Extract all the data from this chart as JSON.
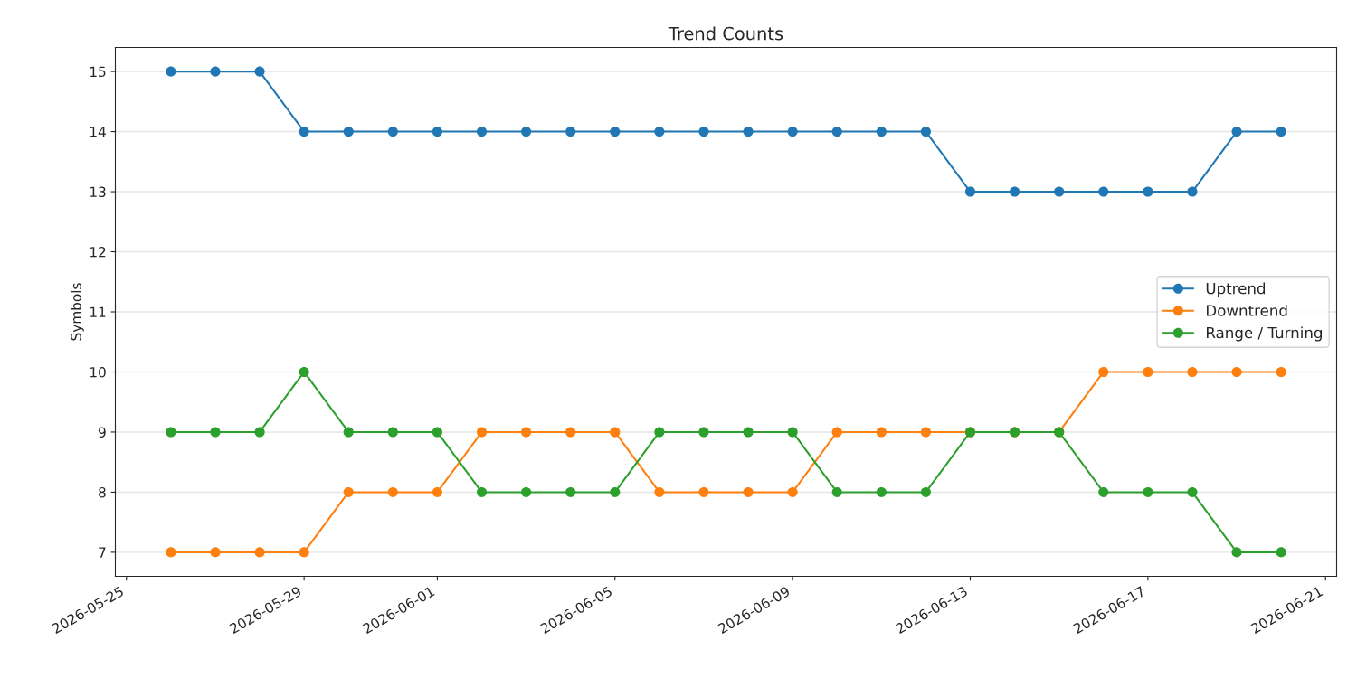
{
  "chart_data": {
    "type": "line",
    "title": "Trend Counts",
    "ylabel": "Symbols",
    "x": [
      "2026-05-26",
      "2026-05-27",
      "2026-05-28",
      "2026-05-29",
      "2026-05-30",
      "2026-05-31",
      "2026-06-01",
      "2026-06-02",
      "2026-06-03",
      "2026-06-04",
      "2026-06-05",
      "2026-06-06",
      "2026-06-07",
      "2026-06-08",
      "2026-06-09",
      "2026-06-10",
      "2026-06-11",
      "2026-06-12",
      "2026-06-13",
      "2026-06-14",
      "2026-06-15",
      "2026-06-16",
      "2026-06-17",
      "2026-06-18",
      "2026-06-19",
      "2026-06-20"
    ],
    "series": [
      {
        "name": "Uptrend",
        "color": "#1f77b4",
        "values": [
          15,
          15,
          15,
          14,
          14,
          14,
          14,
          14,
          14,
          14,
          14,
          14,
          14,
          14,
          14,
          14,
          14,
          14,
          13,
          13,
          13,
          13,
          13,
          13,
          14,
          14
        ]
      },
      {
        "name": "Downtrend",
        "color": "#ff7f0e",
        "values": [
          7,
          7,
          7,
          7,
          8,
          8,
          8,
          9,
          9,
          9,
          9,
          8,
          8,
          8,
          8,
          9,
          9,
          9,
          9,
          9,
          9,
          10,
          10,
          10,
          10,
          10
        ]
      },
      {
        "name": "Range / Turning",
        "color": "#2ca02c",
        "values": [
          9,
          9,
          9,
          10,
          9,
          9,
          9,
          8,
          8,
          8,
          8,
          9,
          9,
          9,
          9,
          8,
          8,
          8,
          9,
          9,
          9,
          8,
          8,
          8,
          7,
          7
        ]
      }
    ],
    "xlim": [
      "2026-05-24T18:00",
      "2026-06-21T06:00"
    ],
    "xticks": [
      "2026-05-25",
      "2026-05-29",
      "2026-06-01",
      "2026-06-05",
      "2026-06-09",
      "2026-06-13",
      "2026-06-17",
      "2026-06-21"
    ],
    "ylim": [
      6.6,
      15.4
    ],
    "yticks": [
      7,
      8,
      9,
      10,
      11,
      12,
      13,
      14,
      15
    ],
    "grid": "y",
    "legend": "right",
    "marker": "circle",
    "line_style": "solid"
  }
}
